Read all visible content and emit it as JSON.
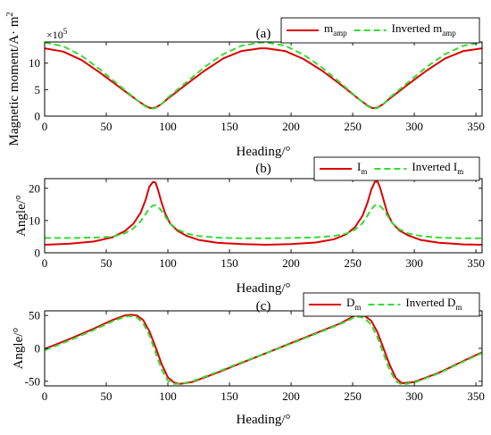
{
  "colors": {
    "measured": "#dd0000",
    "inverted": "#33dd33"
  },
  "chart_data": [
    {
      "type": "line",
      "panel_label": "(a)",
      "xlabel": "Heading/°",
      "ylabel": "Magnetic moment/A· m²",
      "ylabel_main": "Magnetic moment/A· m",
      "ylabel_sup": "2",
      "xlim": [
        0,
        355
      ],
      "ylim": [
        0,
        14
      ],
      "xticks": [
        0,
        50,
        100,
        150,
        200,
        250,
        300,
        350
      ],
      "yticks": [
        0,
        5,
        10
      ],
      "exponent_base": "×10",
      "exponent_power": "5",
      "legend_position": "top-right",
      "series": [
        {
          "name": "m_amp",
          "legend_main": "m",
          "legend_sub": "amp",
          "style": "solid",
          "x": [
            0,
            15,
            30,
            45,
            60,
            75,
            82,
            86,
            90,
            95,
            100,
            115,
            130,
            145,
            160,
            175,
            180,
            195,
            210,
            225,
            240,
            255,
            262,
            266,
            270,
            275,
            280,
            295,
            310,
            325,
            340,
            355
          ],
          "y": [
            12.8,
            12.2,
            10.6,
            8.2,
            5.6,
            3.0,
            1.9,
            1.5,
            1.6,
            2.3,
            3.3,
            6.0,
            8.6,
            10.9,
            12.3,
            12.8,
            12.8,
            12.3,
            10.8,
            8.6,
            6.0,
            3.2,
            2.0,
            1.5,
            1.6,
            2.3,
            3.3,
            6.0,
            8.6,
            10.9,
            12.3,
            12.8
          ]
        },
        {
          "name": "Inverted m_amp",
          "legend_main": "Inverted m",
          "legend_sub": "amp",
          "style": "dashed",
          "x": [
            0,
            15,
            30,
            45,
            60,
            75,
            82,
            86,
            90,
            95,
            100,
            115,
            130,
            145,
            160,
            175,
            180,
            195,
            210,
            225,
            240,
            255,
            262,
            266,
            270,
            275,
            280,
            295,
            310,
            325,
            340,
            355
          ],
          "y": [
            13.9,
            13.2,
            11.4,
            8.8,
            5.9,
            3.0,
            1.8,
            1.4,
            1.5,
            2.3,
            3.5,
            6.4,
            9.3,
            11.7,
            13.3,
            13.9,
            13.9,
            13.3,
            11.6,
            9.2,
            6.3,
            3.2,
            1.9,
            1.4,
            1.5,
            2.3,
            3.5,
            6.4,
            9.3,
            11.7,
            13.3,
            13.9
          ]
        }
      ]
    },
    {
      "type": "line",
      "panel_label": "(b)",
      "xlabel": "Heading/°",
      "ylabel": "Angle/°",
      "xlim": [
        0,
        355
      ],
      "ylim": [
        0,
        23
      ],
      "xticks": [
        0,
        50,
        100,
        150,
        200,
        250,
        300,
        350
      ],
      "yticks": [
        0,
        10,
        20
      ],
      "legend_position": "top-right",
      "series": [
        {
          "name": "I_m",
          "legend_main": "I",
          "legend_sub": "m",
          "style": "solid",
          "x": [
            0,
            20,
            40,
            55,
            65,
            72,
            78,
            82,
            85,
            88,
            90,
            92,
            95,
            98,
            102,
            108,
            115,
            125,
            140,
            160,
            180,
            200,
            220,
            235,
            245,
            252,
            258,
            262,
            265,
            268,
            270,
            272,
            275,
            278,
            282,
            288,
            295,
            305,
            320,
            340,
            355
          ],
          "y": [
            2.5,
            2.8,
            3.5,
            4.8,
            6.7,
            9.0,
            12.5,
            16.5,
            20.5,
            22.0,
            21.8,
            19.5,
            15.5,
            12.0,
            9.0,
            6.8,
            5.3,
            4.0,
            3.1,
            2.7,
            2.5,
            2.7,
            3.2,
            4.2,
            5.8,
            8.0,
            11.5,
            15.5,
            19.5,
            22.0,
            22.2,
            20.5,
            16.5,
            12.5,
            9.3,
            6.9,
            5.4,
            4.0,
            3.1,
            2.6,
            2.5
          ]
        },
        {
          "name": "Inverted I_m",
          "legend_main": "Inverted I",
          "legend_sub": "m",
          "style": "dashed",
          "x": [
            0,
            20,
            40,
            55,
            65,
            72,
            78,
            82,
            85,
            88,
            90,
            92,
            95,
            98,
            102,
            108,
            115,
            125,
            140,
            160,
            180,
            200,
            220,
            235,
            245,
            252,
            258,
            262,
            265,
            268,
            270,
            272,
            275,
            278,
            282,
            288,
            295,
            305,
            320,
            340,
            355
          ],
          "y": [
            4.6,
            4.6,
            4.7,
            5.0,
            6.0,
            7.6,
            9.8,
            12.0,
            13.8,
            14.7,
            14.8,
            14.4,
            13.0,
            11.2,
            9.0,
            7.2,
            6.0,
            5.2,
            4.7,
            4.5,
            4.5,
            4.6,
            4.8,
            5.2,
            6.0,
            7.2,
            9.2,
            11.5,
            13.5,
            14.7,
            15.0,
            14.6,
            13.4,
            11.6,
            9.3,
            7.3,
            6.0,
            5.2,
            4.7,
            4.5,
            4.5
          ]
        }
      ]
    },
    {
      "type": "line",
      "panel_label": "(c)",
      "xlabel": "Heading/°",
      "ylabel": "Angle/°",
      "xlim": [
        0,
        355
      ],
      "ylim": [
        -57,
        57
      ],
      "xticks": [
        0,
        50,
        100,
        150,
        200,
        250,
        300,
        350
      ],
      "yticks": [
        -50,
        0,
        50
      ],
      "legend_position": "top-right",
      "series": [
        {
          "name": "D_m",
          "legend_main": "D",
          "legend_sub": "m",
          "style": "solid",
          "x": [
            0,
            20,
            40,
            55,
            65,
            70,
            75,
            80,
            85,
            90,
            95,
            100,
            105,
            110,
            120,
            140,
            160,
            180,
            200,
            220,
            240,
            248,
            252,
            256,
            260,
            265,
            270,
            275,
            280,
            285,
            290,
            300,
            320,
            340,
            355
          ],
          "y": [
            -1,
            14,
            30,
            43,
            50,
            51,
            50,
            43,
            26,
            2,
            -24,
            -44,
            -52,
            -54,
            -51,
            -37,
            -22,
            -7,
            8,
            23,
            38,
            46,
            50,
            51,
            49,
            42,
            25,
            0,
            -25,
            -45,
            -53,
            -51,
            -37,
            -19,
            -6
          ]
        },
        {
          "name": "Inverted D_m",
          "legend_main": "Inverted D",
          "legend_sub": "m",
          "style": "dashed",
          "x": [
            0,
            20,
            40,
            55,
            65,
            70,
            75,
            80,
            85,
            90,
            95,
            100,
            105,
            110,
            120,
            140,
            160,
            180,
            200,
            220,
            240,
            248,
            252,
            256,
            260,
            265,
            270,
            275,
            280,
            285,
            290,
            300,
            320,
            340,
            355
          ],
          "y": [
            -3,
            12,
            28,
            41,
            48,
            49,
            47,
            38,
            20,
            -6,
            -32,
            -49,
            -54,
            -54,
            -50,
            -36,
            -21,
            -7,
            7,
            22,
            37,
            44,
            48,
            48,
            45,
            36,
            17,
            -8,
            -33,
            -50,
            -55,
            -52,
            -38,
            -20,
            -7
          ]
        }
      ]
    }
  ]
}
